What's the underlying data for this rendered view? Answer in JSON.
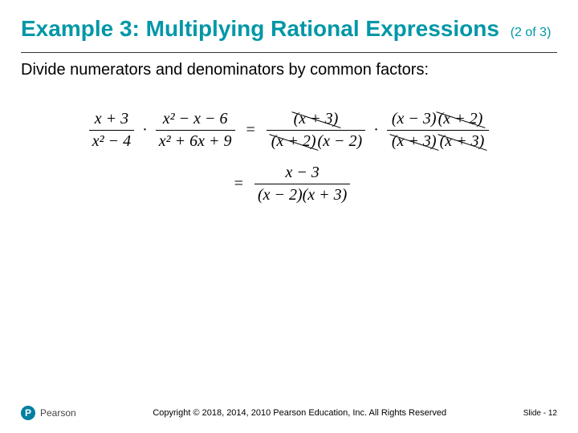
{
  "colors": {
    "title": "#0097a7",
    "text": "#000000",
    "logo_bg": "#007fa3",
    "background": "#ffffff"
  },
  "title": {
    "main": "Example 3: Multiplying Rational Expressions",
    "part": "(2 of 3)",
    "fontsize_main": 28,
    "fontsize_part": 16,
    "weight": 700
  },
  "body": {
    "instruction": "Divide numerators and denominators by common factors:",
    "fontsize": 20
  },
  "equation": {
    "font_family": "Times New Roman",
    "fontsize": 20,
    "lhs_frac1": {
      "num": "x + 3",
      "den": "x² − 4"
    },
    "lhs_frac2": {
      "num": "x² − x − 6",
      "den": "x² + 6x + 9"
    },
    "rhs_frac1": {
      "num_cancel": "(x + 3)",
      "den_cancel1": "(x + 2)",
      "den_plain": "(x − 2)"
    },
    "rhs_frac2": {
      "num_plain": "(x − 3)",
      "num_cancel": "(x + 2)",
      "den_cancel1": "(x + 3)",
      "den_cancel2": "(x + 3)"
    },
    "result": {
      "num": "x − 3",
      "den": "(x − 2)(x + 3)"
    },
    "dot": "·",
    "eq": "="
  },
  "footer": {
    "logo_letter": "P",
    "logo_text": "Pearson",
    "copyright": "Copyright © 2018, 2014, 2010 Pearson Education, Inc. All Rights Reserved",
    "slide_label": "Slide - ",
    "slide_number": "12",
    "fontsize": 11
  }
}
